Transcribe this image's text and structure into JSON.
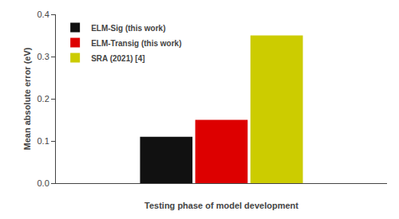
{
  "chart_data": {
    "type": "bar",
    "categories": [
      null
    ],
    "series": [
      {
        "name": "ELM-Sig (this work)",
        "color": "#111111",
        "values": [
          0.11
        ]
      },
      {
        "name": "ELM-Transig (this work)",
        "color": "#dd0000",
        "values": [
          0.15
        ]
      },
      {
        "name": "SRA (2021) [4]",
        "color": "#cccc00",
        "values": [
          0.35
        ]
      }
    ],
    "xlabel": "Testing phase of model development",
    "ylabel": "Mean absolute error (eV)",
    "ylim": [
      0.0,
      0.4
    ],
    "yticks": [
      {
        "value": 0.0,
        "label": "0.0"
      },
      0.1,
      0.2,
      0.3,
      0.4
    ],
    "grid": false,
    "legend": "upper left",
    "tick_labels": "y"
  }
}
